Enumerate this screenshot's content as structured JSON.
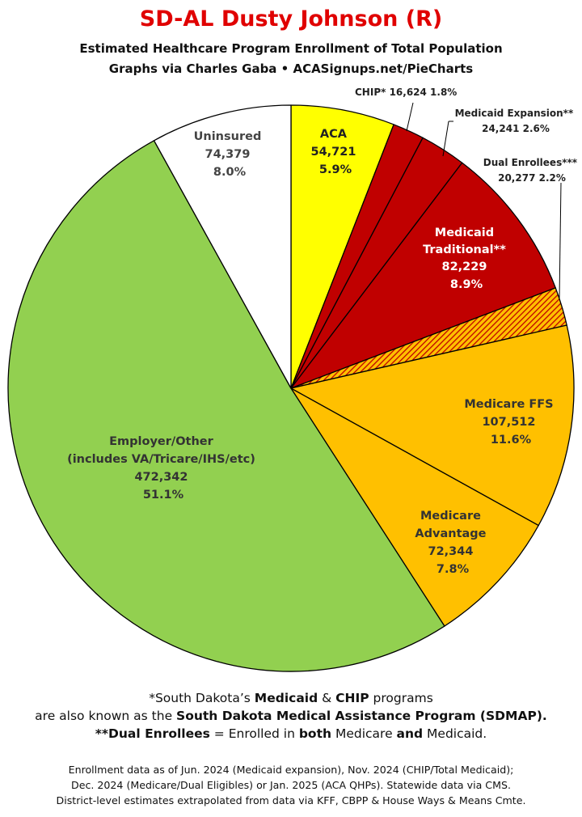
{
  "title": "SD-AL Dusty Johnson (R)",
  "subtitle1": "Estimated Healthcare Program Enrollment of Total Population",
  "subtitle2": "Graphs via Charles Gaba  •  ACASignups.net/PieCharts",
  "colors": {
    "aca": "#ffff00",
    "medicaid": "#c00000",
    "dual_hatch_bg": "#ffc000",
    "dual_hatch_line": "#c00000",
    "medicare": "#ffc000",
    "employer": "#92d050",
    "uninsured": "#ffffff",
    "title": "#e00000"
  },
  "chart_data": {
    "type": "pie",
    "start": "12 o'clock, clockwise",
    "slices": [
      {
        "name": "ACA",
        "value": 54721,
        "pct": "5.9%",
        "label": "54,721",
        "color": "#ffff00"
      },
      {
        "name": "CHIP*",
        "value": 16624,
        "pct": "1.8%",
        "label": "16,624",
        "color": "#c00000"
      },
      {
        "name": "Medicaid Expansion**",
        "value": 24241,
        "pct": "2.6%",
        "label": "24,241",
        "color": "#c00000"
      },
      {
        "name": "Medicaid Traditional**",
        "value": 82229,
        "pct": "8.9%",
        "label": "82,229",
        "color": "#c00000"
      },
      {
        "name": "Dual Enrollees***",
        "value": 20277,
        "pct": "2.2%",
        "label": "20,277",
        "color": "hatch"
      },
      {
        "name": "Medicare FFS",
        "value": 107512,
        "pct": "11.6%",
        "label": "107,512",
        "color": "#ffc000"
      },
      {
        "name": "Medicare Advantage",
        "value": 72344,
        "pct": "7.8%",
        "label": "72,344",
        "color": "#ffc000"
      },
      {
        "name": "Employer/Other (includes VA/Tricare/IHS/etc)",
        "value": 472342,
        "pct": "51.1%",
        "label": "472,342",
        "color": "#92d050"
      },
      {
        "name": "Uninsured",
        "value": 74379,
        "pct": "8.0%",
        "label": "74,379",
        "color": "#ffffff"
      }
    ],
    "slice_labels": {
      "aca": [
        "ACA",
        "54,721",
        "5.9%"
      ],
      "chip": "CHIP* 16,624 1.8%",
      "expansion": [
        "Medicaid Expansion**",
        "24,241 2.6%"
      ],
      "dual": [
        "Dual Enrollees***",
        "20,277 2.2%"
      ],
      "traditional": [
        "Medicaid",
        "Traditional**",
        "82,229",
        "8.9%"
      ],
      "ffs": [
        "Medicare FFS",
        "107,512",
        "11.6%"
      ],
      "advantage": [
        "Medicare",
        "Advantage",
        "72,344",
        "7.8%"
      ],
      "employer": [
        "Employer/Other",
        "(includes VA/Tricare/IHS/etc)",
        "472,342",
        "51.1%"
      ],
      "uninsured": [
        "Uninsured",
        "74,379",
        "8.0%"
      ]
    }
  },
  "notes": {
    "line1_a": "*South Dakota’s ",
    "line1_b": "Medicaid",
    "line1_c": " & ",
    "line1_d": "CHIP",
    "line1_e": " programs",
    "line2_a": "are also known as the ",
    "line2_b": "South Dakota Medical Assistance Program (SDMAP).",
    "line3_a": "**Dual Enrollees",
    "line3_b": " = Enrolled in ",
    "line3_c": "both",
    "line3_d": " Medicare ",
    "line3_e": "and",
    "line3_f": " Medicaid."
  },
  "footer": {
    "line1": "Enrollment data as of Jun. 2024 (Medicaid expansion), Nov. 2024 (CHIP/Total Medicaid);",
    "line2": "Dec. 2024 (Medicare/Dual Eligibles) or Jan. 2025 (ACA QHPs). Statewide data via CMS.",
    "line3": "District-level estimates extrapolated from data via KFF, CBPP & House Ways & Means Cmte."
  }
}
